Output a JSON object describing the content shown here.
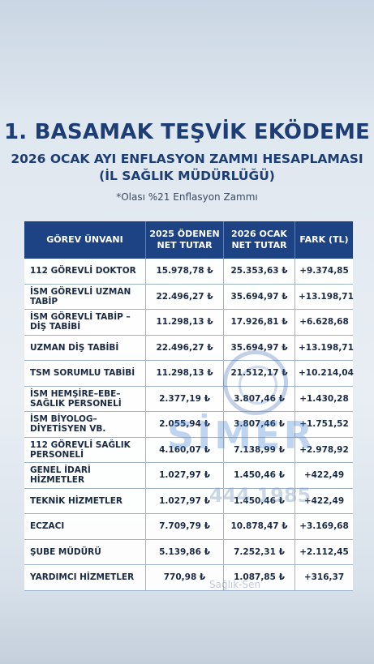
{
  "header": {
    "title": "1. BASAMAK TEŞVİK EKÖDEME",
    "subtitle_line1": "2026 OCAK AYI ENFLASYON ZAMMI HESAPLAMASI",
    "subtitle_line2": "(İL SAĞLIK MÜDÜRLÜĞÜ)",
    "note": "*Olası %21 Enflasyon Zammı"
  },
  "table": {
    "columns": [
      {
        "line1": "GÖREV ÜNVANI",
        "line2": ""
      },
      {
        "line1": "2025 ÖDENEN",
        "line2": "NET TUTAR"
      },
      {
        "line1": "2026 OCAK",
        "line2": "NET TUTAR"
      },
      {
        "line1": "FARK (TL)",
        "line2": ""
      }
    ],
    "rows": [
      {
        "title": "112 GÖREVLİ DOKTOR",
        "paid_2025": "15.978,78 ₺",
        "jan_2026": "25.353,63 ₺",
        "diff": "+9.374,85"
      },
      {
        "title": "İSM GÖREVLİ UZMAN TABİP",
        "paid_2025": "22.496,27 ₺",
        "jan_2026": "35.694,97 ₺",
        "diff": "+13.198,71"
      },
      {
        "title": "İSM GÖREVLİ TABİP – DİŞ TABİBİ",
        "paid_2025": "11.298,13 ₺",
        "jan_2026": "17.926,81 ₺",
        "diff": "+6.628,68"
      },
      {
        "title": "UZMAN DİŞ TABİBİ",
        "paid_2025": "22.496,27 ₺",
        "jan_2026": "35.694,97 ₺",
        "diff": "+13.198,71"
      },
      {
        "title": "TSM SORUMLU TABİBİ",
        "paid_2025": "11.298,13 ₺",
        "jan_2026": "21.512,17 ₺",
        "diff": "+10.214,04"
      },
      {
        "title": "İSM HEMŞİRE–EBE–SAĞLIK PERSONELİ",
        "paid_2025": "2.377,19 ₺",
        "jan_2026": "3.807,46 ₺",
        "diff": "+1.430,28"
      },
      {
        "title": "İSM BİYOLOG–DİYETİSYEN VB.",
        "paid_2025": "2.055,94 ₺",
        "jan_2026": "3.807,46 ₺",
        "diff": "+1.751,52"
      },
      {
        "title": "112 GÖREVLİ SAĞLIK PERSONELİ",
        "paid_2025": "4.160,07 ₺",
        "jan_2026": "7.138,99 ₺",
        "diff": "+2.978,92"
      },
      {
        "title": "GENEL İDARİ HİZMETLER",
        "paid_2025": "1.027,97 ₺",
        "jan_2026": "1.450,46 ₺",
        "diff": "+422,49"
      },
      {
        "title": "TEKNİK HİZMETLER",
        "paid_2025": "1.027,97 ₺",
        "jan_2026": "1.450,46 ₺",
        "diff": "+422,49"
      },
      {
        "title": "ECZACI",
        "paid_2025": "7.709,79 ₺",
        "jan_2026": "10.878,47 ₺",
        "diff": "+3.169,68"
      },
      {
        "title": "ŞUBE MÜDÜRÜ",
        "paid_2025": "5.139,86 ₺",
        "jan_2026": "7.252,31 ₺",
        "diff": "+2.112,45"
      },
      {
        "title": "YARDIMCI HİZMETLER",
        "paid_2025": "770,98 ₺",
        "jan_2026": "1.087,85 ₺",
        "diff": "+316,37"
      }
    ]
  },
  "watermark": {
    "name": "SİMER",
    "phone": "444 1985",
    "tagline": "Sağlık-Sen"
  },
  "colors": {
    "header_bg": "#1e4384",
    "title_text": "#1d3e74",
    "watermark": "#3c7fd0"
  }
}
